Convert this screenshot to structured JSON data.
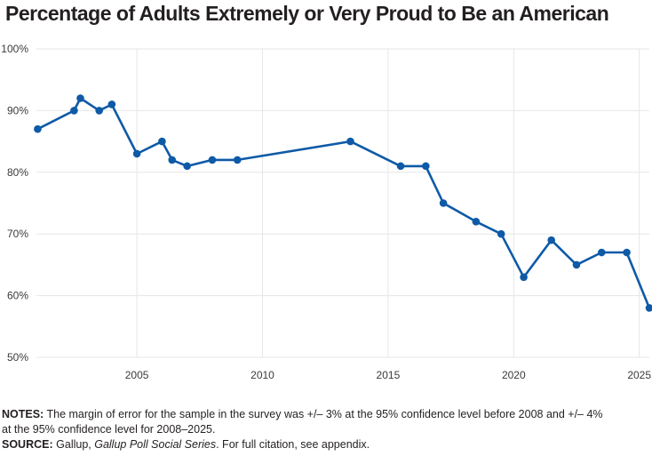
{
  "title": "Percentage of Adults Extremely or Very Proud to Be an American",
  "notes": {
    "notes_label": "NOTES:",
    "notes_text_1": "The margin of error for the sample in the survey was +/– 3% at the 95% confidence level before 2008 and +/– 4%",
    "notes_text_2": "at the 95% confidence level for 2008–2025.",
    "source_label": "SOURCE:",
    "source_text_1": "Gallup, ",
    "source_series": "Gallup Poll Social Series",
    "source_text_2": ". For full citation, see appendix."
  },
  "chart_data": {
    "type": "line",
    "title": "Percentage of Adults Extremely or Very Proud to Be an American",
    "xlabel": "",
    "ylabel": "",
    "xlim": [
      2001,
      2025.4
    ],
    "ylim": [
      50,
      100
    ],
    "x_ticks": [
      2005,
      2010,
      2015,
      2020,
      2025
    ],
    "y_ticks": [
      50,
      60,
      70,
      80,
      90,
      100
    ],
    "y_tick_labels": [
      "50%",
      "60%",
      "70%",
      "80%",
      "90%",
      "100%"
    ],
    "grid": "horizontal and vertical",
    "line_color": "#0e5aa7",
    "series": [
      {
        "x": [
          2001.05,
          2002.5,
          2002.75,
          2003.5,
          2004.0,
          2005.0,
          2006.0,
          2006.4,
          2007.0,
          2008.0,
          2009.0,
          2013.5,
          2015.5,
          2016.5,
          2017.2,
          2018.5,
          2019.5,
          2020.4,
          2021.5,
          2022.5,
          2023.5,
          2024.5,
          2025.4
        ],
        "y": [
          87,
          90,
          92,
          90,
          91,
          83,
          85,
          82,
          81,
          82,
          82,
          85,
          81,
          81,
          75,
          72,
          70,
          63,
          69,
          65,
          67,
          67,
          58
        ]
      }
    ]
  }
}
